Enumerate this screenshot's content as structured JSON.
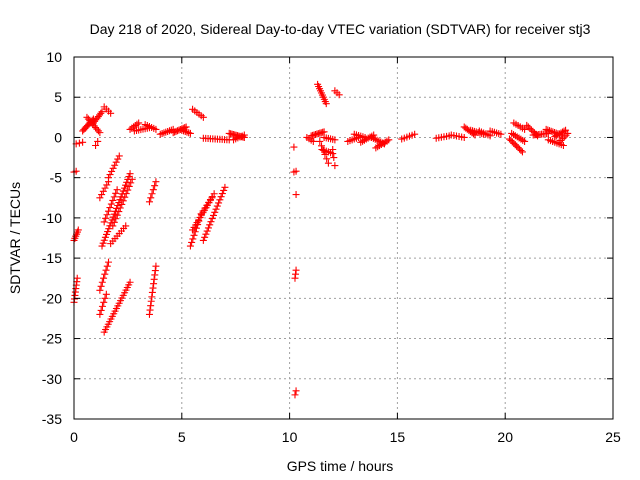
{
  "chart_data": {
    "type": "scatter",
    "title": "Day 218 of 2020, Sidereal Day-to-day VTEC variation (SDTVAR) for receiver stj3",
    "xlabel": "GPS time / hours",
    "ylabel": "SDTVAR / TECUs",
    "xlim": [
      0,
      25
    ],
    "ylim": [
      -35,
      10
    ],
    "xticks": [
      "0",
      "5",
      "10",
      "15",
      "20",
      "25"
    ],
    "yticks": [
      "10",
      "5",
      "0",
      "-5",
      "-10",
      "-15",
      "-20",
      "-25",
      "-30",
      "-35"
    ],
    "xtick_values": [
      0,
      5,
      10,
      15,
      20,
      25
    ],
    "ytick_values": [
      10,
      5,
      0,
      -5,
      -10,
      -15,
      -20,
      -25,
      -30,
      -35
    ],
    "grid": true,
    "marker": "+",
    "color": "#ff0000",
    "segments": [
      {
        "x0": 0.0,
        "y0": -12.8,
        "x1": 0.2,
        "y1": -11.5,
        "n": 6
      },
      {
        "x0": 0.0,
        "y0": -20.5,
        "x1": 0.15,
        "y1": -17.5,
        "n": 8
      },
      {
        "x0": 0.0,
        "y0": -4.3,
        "x1": 0.1,
        "y1": -4.2,
        "n": 2
      },
      {
        "x0": 0.1,
        "y0": -0.8,
        "x1": 0.4,
        "y1": -0.6,
        "n": 3
      },
      {
        "x0": 0.4,
        "y0": 0.8,
        "x1": 0.9,
        "y1": 2.3,
        "n": 10
      },
      {
        "x0": 0.6,
        "y0": 2.5,
        "x1": 1.2,
        "y1": 0.6,
        "n": 10
      },
      {
        "x0": 0.9,
        "y0": 1.8,
        "x1": 1.3,
        "y1": 3.2,
        "n": 8
      },
      {
        "x0": 1.0,
        "y0": -1.0,
        "x1": 1.1,
        "y1": -0.5,
        "n": 2
      },
      {
        "x0": 1.4,
        "y0": 3.8,
        "x1": 1.7,
        "y1": 3.0,
        "n": 4
      },
      {
        "x0": 1.2,
        "y0": -7.5,
        "x1": 1.6,
        "y1": -5.5,
        "n": 6
      },
      {
        "x0": 1.6,
        "y0": -5.0,
        "x1": 2.1,
        "y1": -2.3,
        "n": 8
      },
      {
        "x0": 1.3,
        "y0": -13.5,
        "x1": 2.6,
        "y1": -4.5,
        "n": 26
      },
      {
        "x0": 1.4,
        "y0": -10.5,
        "x1": 2.0,
        "y1": -6.5,
        "n": 10
      },
      {
        "x0": 1.8,
        "y0": -11.0,
        "x1": 2.7,
        "y1": -5.2,
        "n": 14
      },
      {
        "x0": 1.7,
        "y0": -13.2,
        "x1": 2.4,
        "y1": -11.0,
        "n": 8
      },
      {
        "x0": 1.2,
        "y0": -19.0,
        "x1": 1.6,
        "y1": -15.5,
        "n": 8
      },
      {
        "x0": 1.2,
        "y0": -22.0,
        "x1": 1.5,
        "y1": -19.5,
        "n": 6
      },
      {
        "x0": 1.4,
        "y0": -24.2,
        "x1": 2.6,
        "y1": -18.0,
        "n": 20
      },
      {
        "x0": 2.6,
        "y0": 1.0,
        "x1": 3.0,
        "y1": 1.8,
        "n": 6
      },
      {
        "x0": 2.8,
        "y0": 0.8,
        "x1": 3.5,
        "y1": 1.2,
        "n": 8
      },
      {
        "x0": 3.3,
        "y0": 1.6,
        "x1": 3.8,
        "y1": 1.0,
        "n": 6
      },
      {
        "x0": 3.5,
        "y0": -8.0,
        "x1": 3.8,
        "y1": -5.5,
        "n": 6
      },
      {
        "x0": 3.5,
        "y0": -22.0,
        "x1": 3.8,
        "y1": -16.0,
        "n": 12
      },
      {
        "x0": 4.0,
        "y0": 0.4,
        "x1": 4.6,
        "y1": 1.0,
        "n": 8
      },
      {
        "x0": 4.6,
        "y0": 0.6,
        "x1": 5.2,
        "y1": 1.3,
        "n": 10
      },
      {
        "x0": 5.0,
        "y0": 0.9,
        "x1": 5.4,
        "y1": 0.5,
        "n": 6
      },
      {
        "x0": 5.5,
        "y0": 3.5,
        "x1": 6.0,
        "y1": 2.5,
        "n": 6
      },
      {
        "x0": 5.4,
        "y0": -13.5,
        "x1": 5.9,
        "y1": -9.5,
        "n": 10
      },
      {
        "x0": 5.5,
        "y0": -11.5,
        "x1": 6.4,
        "y1": -7.5,
        "n": 14
      },
      {
        "x0": 5.9,
        "y0": -9.5,
        "x1": 6.5,
        "y1": -7.0,
        "n": 8
      },
      {
        "x0": 6.0,
        "y0": -12.8,
        "x1": 7.0,
        "y1": -6.2,
        "n": 18
      },
      {
        "x0": 6.0,
        "y0": -0.1,
        "x1": 7.2,
        "y1": -0.3,
        "n": 12
      },
      {
        "x0": 7.2,
        "y0": 0.5,
        "x1": 7.9,
        "y1": 0.0,
        "n": 12
      },
      {
        "x0": 7.4,
        "y0": -0.3,
        "x1": 7.9,
        "y1": 0.3,
        "n": 6
      },
      {
        "x0": 10.2,
        "y0": -1.2,
        "x1": 10.25,
        "y1": -1.2,
        "n": 1
      },
      {
        "x0": 10.2,
        "y0": -4.3,
        "x1": 10.3,
        "y1": -4.2,
        "n": 2
      },
      {
        "x0": 10.3,
        "y0": -7.1,
        "x1": 10.3,
        "y1": -7.1,
        "n": 1
      },
      {
        "x0": 10.25,
        "y0": -17.5,
        "x1": 10.3,
        "y1": -16.5,
        "n": 3
      },
      {
        "x0": 10.25,
        "y0": -32.0,
        "x1": 10.3,
        "y1": -31.5,
        "n": 2
      },
      {
        "x0": 10.8,
        "y0": 0.0,
        "x1": 11.1,
        "y1": -0.5,
        "n": 4
      },
      {
        "x0": 11.0,
        "y0": 0.2,
        "x1": 11.6,
        "y1": 0.7,
        "n": 10
      },
      {
        "x0": 11.3,
        "y0": 6.6,
        "x1": 11.7,
        "y1": 4.2,
        "n": 10
      },
      {
        "x0": 11.4,
        "y0": -0.5,
        "x1": 11.8,
        "y1": -3.2,
        "n": 6
      },
      {
        "x0": 11.5,
        "y0": -1.5,
        "x1": 12.0,
        "y1": -2.0,
        "n": 6
      },
      {
        "x0": 11.6,
        "y0": 0.0,
        "x1": 12.1,
        "y1": -0.3,
        "n": 6
      },
      {
        "x0": 12.1,
        "y0": 5.8,
        "x1": 12.3,
        "y1": 5.3,
        "n": 3
      },
      {
        "x0": 12.0,
        "y0": -1.5,
        "x1": 12.1,
        "y1": -3.5,
        "n": 3
      },
      {
        "x0": 12.7,
        "y0": -0.5,
        "x1": 13.2,
        "y1": 0.0,
        "n": 6
      },
      {
        "x0": 13.0,
        "y0": 0.4,
        "x1": 13.5,
        "y1": 0.0,
        "n": 6
      },
      {
        "x0": 13.3,
        "y0": -0.6,
        "x1": 13.9,
        "y1": 0.3,
        "n": 8
      },
      {
        "x0": 13.8,
        "y0": 0.0,
        "x1": 14.4,
        "y1": -0.8,
        "n": 8
      },
      {
        "x0": 14.0,
        "y0": -1.3,
        "x1": 14.6,
        "y1": -0.3,
        "n": 8
      },
      {
        "x0": 15.2,
        "y0": -0.2,
        "x1": 15.8,
        "y1": 0.4,
        "n": 6
      },
      {
        "x0": 16.8,
        "y0": -0.1,
        "x1": 17.4,
        "y1": 0.2,
        "n": 6
      },
      {
        "x0": 17.5,
        "y0": 0.3,
        "x1": 18.1,
        "y1": 0.0,
        "n": 6
      },
      {
        "x0": 18.1,
        "y0": 1.3,
        "x1": 18.6,
        "y1": 0.3,
        "n": 8
      },
      {
        "x0": 18.4,
        "y0": 0.9,
        "x1": 19.0,
        "y1": 0.4,
        "n": 8
      },
      {
        "x0": 18.8,
        "y0": 0.8,
        "x1": 19.3,
        "y1": 0.2,
        "n": 6
      },
      {
        "x0": 19.3,
        "y0": 0.8,
        "x1": 19.8,
        "y1": 0.4,
        "n": 6
      },
      {
        "x0": 20.2,
        "y0": -0.2,
        "x1": 20.8,
        "y1": -1.8,
        "n": 10
      },
      {
        "x0": 20.3,
        "y0": 0.5,
        "x1": 20.9,
        "y1": -0.5,
        "n": 8
      },
      {
        "x0": 20.4,
        "y0": 1.8,
        "x1": 20.9,
        "y1": 1.0,
        "n": 6
      },
      {
        "x0": 21.0,
        "y0": 1.5,
        "x1": 21.5,
        "y1": 0.2,
        "n": 8
      },
      {
        "x0": 21.3,
        "y0": 0.3,
        "x1": 22.0,
        "y1": 0.5,
        "n": 10
      },
      {
        "x0": 21.9,
        "y0": 1.0,
        "x1": 22.6,
        "y1": 0.3,
        "n": 10
      },
      {
        "x0": 22.0,
        "y0": -0.3,
        "x1": 22.7,
        "y1": -1.0,
        "n": 8
      },
      {
        "x0": 22.3,
        "y0": 0.1,
        "x1": 22.8,
        "y1": 0.9,
        "n": 8
      },
      {
        "x0": 22.5,
        "y0": -0.6,
        "x1": 22.9,
        "y1": 0.5,
        "n": 6
      }
    ]
  }
}
